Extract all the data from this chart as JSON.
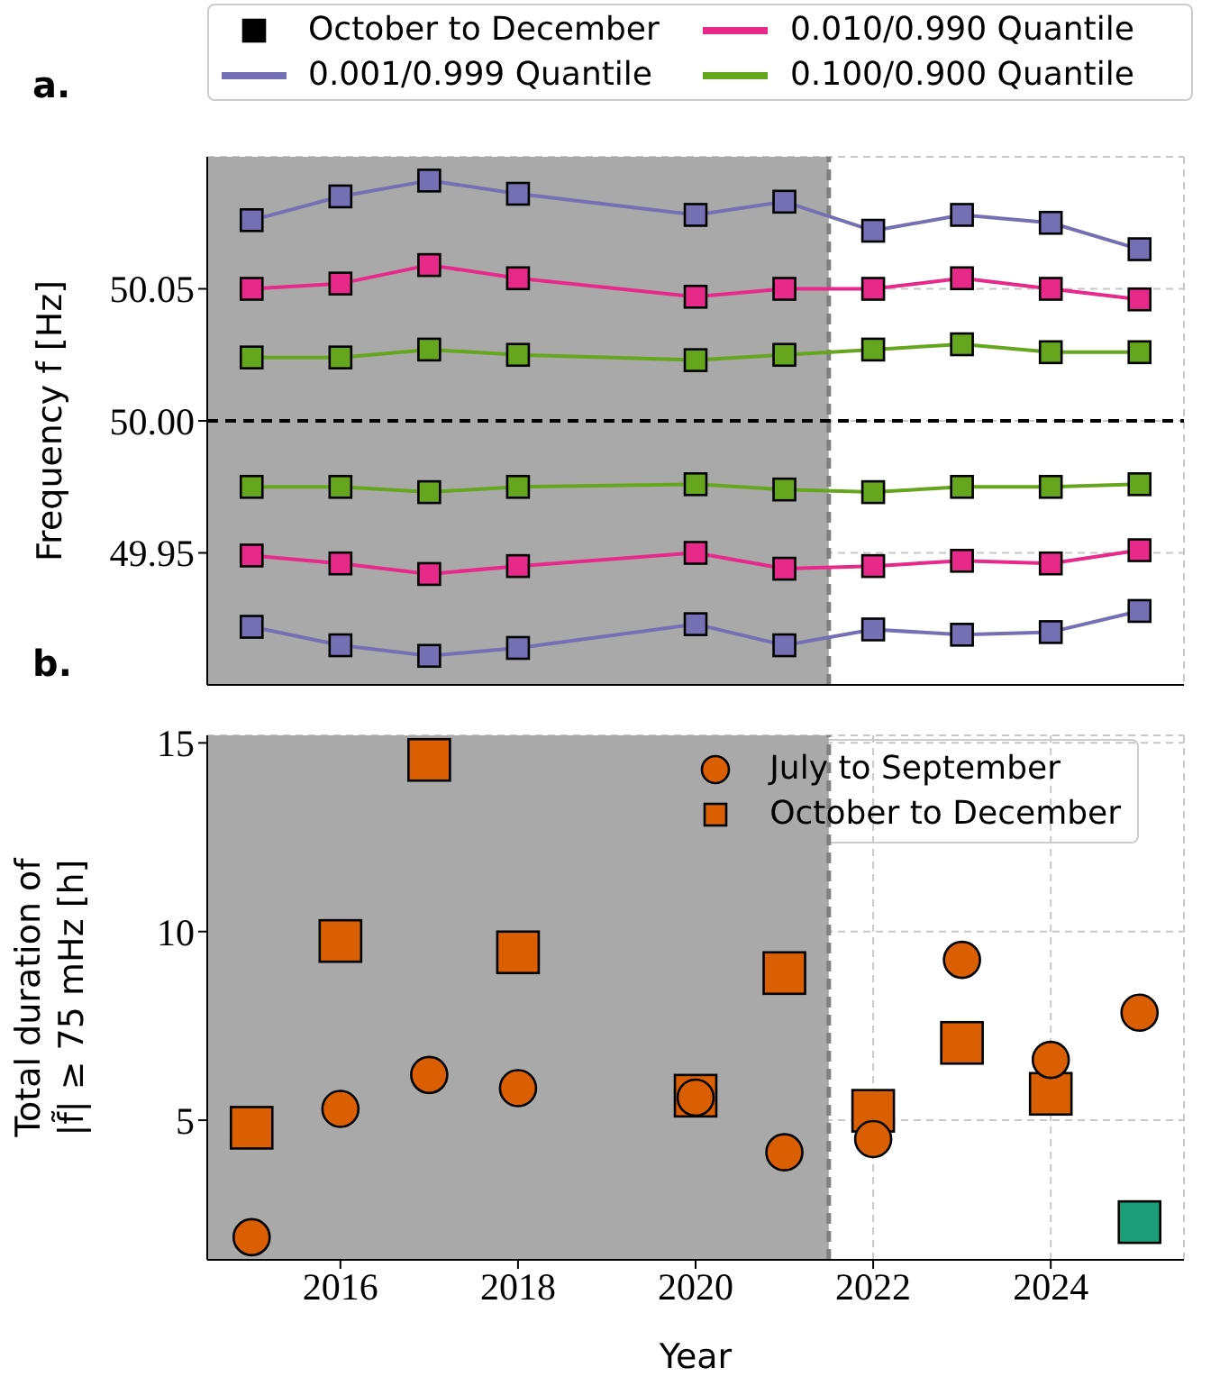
{
  "chart_data": [
    {
      "type": "line",
      "ylabel": "Frequency f [Hz]",
      "annotations": [
        "a."
      ],
      "x": [
        2015,
        2016,
        2017,
        2018,
        2020,
        2021,
        2022,
        2023,
        2024,
        2025
      ],
      "xlim": [
        2014.5,
        2025.5
      ],
      "xticks": [
        2016,
        2018,
        2020,
        2022,
        2024
      ],
      "ylim": [
        49.9,
        50.1
      ],
      "yticks": [
        49.95,
        {
          "value": 50,
          "label": "50.00"
        },
        50.05
      ],
      "tick_labels": "y",
      "grid": true,
      "legend": "top",
      "marker": "square",
      "line_style": "solid",
      "bands": [
        {
          "axis": "x",
          "from": 2014.5,
          "to": 2021.5,
          "color": "#a9a9a9"
        }
      ],
      "ref_lines": [
        {
          "axis": "x",
          "value": 2021.5,
          "color": "#808080",
          "line_style": "dashed"
        },
        {
          "axis": "y",
          "value": 50,
          "color": "#000000",
          "line_style": "dashed"
        }
      ],
      "series": [
        {
          "name": "October to December",
          "type": "scatter",
          "color": "#000000",
          "values": [
            null,
            null,
            null,
            null,
            null,
            null,
            null,
            null,
            null,
            null
          ]
        },
        {
          "name": "0.001/0.999 Quantile",
          "color": "#7570b3",
          "values": [
            50.076,
            50.085,
            50.091,
            50.086,
            50.078,
            50.083,
            50.072,
            50.078,
            50.075,
            50.065
          ]
        },
        {
          "name": "0.010/0.990 Quantile",
          "color": "#e7298a",
          "values": [
            50.05,
            50.052,
            50.059,
            50.054,
            50.047,
            50.05,
            50.05,
            50.054,
            50.05,
            50.046
          ]
        },
        {
          "name": "0.100/0.900 Quantile",
          "color": "#66a61e",
          "values": [
            50.024,
            50.024,
            50.027,
            50.025,
            50.023,
            50.025,
            50.027,
            50.029,
            50.026,
            50.026
          ]
        },
        {
          "color": "#66a61e",
          "values": [
            49.975,
            49.975,
            49.973,
            49.975,
            49.976,
            49.974,
            49.973,
            49.975,
            49.975,
            49.976
          ]
        },
        {
          "color": "#e7298a",
          "values": [
            49.949,
            49.946,
            49.942,
            49.945,
            49.95,
            49.944,
            49.945,
            49.947,
            49.946,
            49.951
          ]
        },
        {
          "color": "#7570b3",
          "values": [
            49.922,
            49.915,
            49.911,
            49.914,
            49.923,
            49.915,
            49.921,
            49.919,
            49.92,
            49.928
          ]
        }
      ]
    },
    {
      "type": "scatter",
      "xlabel": "Year",
      "ylabel": "Total duration of\n|f̃| ≥ 75 mHz [h]",
      "annotations": [
        "b."
      ],
      "x": [
        2015,
        2016,
        2017,
        2018,
        2020,
        2021,
        2022,
        2023,
        2024,
        2025
      ],
      "xlim": [
        2014.5,
        2025.5
      ],
      "xticks": [
        2016,
        2018,
        2020,
        2022,
        2024
      ],
      "ylim": [
        1.3,
        15.2
      ],
      "yticks": [
        5,
        10,
        15
      ],
      "grid": true,
      "legend": "top right",
      "bands": [
        {
          "axis": "x",
          "from": 2014.5,
          "to": 2021.5,
          "color": "#a9a9a9"
        }
      ],
      "ref_lines": [
        {
          "axis": "x",
          "value": 2021.5,
          "color": "#808080",
          "line_style": "dashed"
        }
      ],
      "series": [
        {
          "name": "July to September",
          "marker": "circle",
          "color": "#d95f02",
          "colors": [
            "#d95f02",
            "#d95f02",
            "#d95f02",
            "#d95f02",
            "#d95f02",
            "#d95f02",
            "#d95f02",
            "#d95f02",
            "#d95f02",
            "#d95f02"
          ],
          "values": [
            1.9,
            5.3,
            6.2,
            5.85,
            5.6,
            4.15,
            4.5,
            9.25,
            6.6,
            7.85
          ]
        },
        {
          "name": "October to December",
          "marker": "square",
          "color": "#d95f02",
          "colors": [
            "#d95f02",
            "#d95f02",
            "#d95f02",
            "#d95f02",
            "#d95f02",
            "#d95f02",
            "#d95f02",
            "#d95f02",
            "#d95f02",
            "#1b9e77"
          ],
          "values": [
            4.8,
            9.75,
            14.55,
            9.45,
            5.65,
            8.9,
            5.25,
            7.05,
            5.7,
            2.3
          ]
        }
      ]
    }
  ]
}
